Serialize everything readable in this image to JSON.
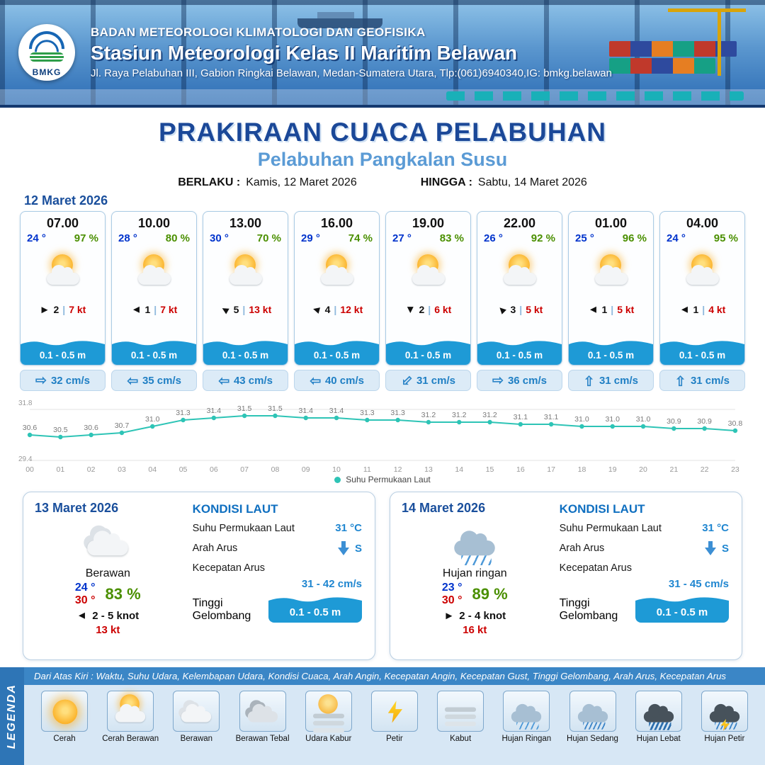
{
  "header": {
    "logo_text": "BMKG",
    "org": "BADAN METEOROLOGI KLIMATOLOGI DAN GEOFISIKA",
    "station": "Stasiun Meteorologi Kelas II Maritim Belawan",
    "address": "Jl. Raya Pelabuhan III, Gabion Ringkai Belawan, Medan-Sumatera Utara, Tlp:(061)6940340,IG: bmkg.belawan"
  },
  "title": {
    "main": "PRAKIRAAN CUACA PELABUHAN",
    "subtitle": "Pelabuhan Pangkalan Susu",
    "valid_from_label": "BERLAKU :",
    "valid_from": "Kamis, 12 Maret 2026",
    "valid_to_label": "HINGGA :",
    "valid_to": "Sabtu, 14 Maret 2026"
  },
  "forecast": {
    "date": "12 Maret 2026",
    "cards": [
      {
        "time": "07.00",
        "temp": "24 °",
        "humidity": "97 %",
        "icon": "cerah-berawan",
        "wind_deg": 0,
        "wind_speed": "2",
        "wind_sep": "|",
        "gust": "7 kt",
        "wave": "0.1 - 0.5 m",
        "current_deg": 0,
        "current": "32 cm/s"
      },
      {
        "time": "10.00",
        "temp": "28 °",
        "humidity": "80 %",
        "icon": "cerah-berawan",
        "wind_deg": 180,
        "wind_speed": "1",
        "wind_sep": "|",
        "gust": "7 kt",
        "wave": "0.1 - 0.5 m",
        "current_deg": 180,
        "current": "35 cm/s"
      },
      {
        "time": "13.00",
        "temp": "30 °",
        "humidity": "70 %",
        "icon": "cerah-berawan",
        "wind_deg": 210,
        "wind_speed": "5",
        "wind_sep": "|",
        "gust": "13 kt",
        "wave": "0.1 - 0.5 m",
        "current_deg": 180,
        "current": "43 cm/s"
      },
      {
        "time": "16.00",
        "temp": "29 °",
        "humidity": "74 %",
        "icon": "cerah-berawan",
        "wind_deg": 195,
        "wind_speed": "4",
        "wind_sep": "|",
        "gust": "12 kt",
        "wave": "0.1 - 0.5 m",
        "current_deg": 180,
        "current": "40 cm/s"
      },
      {
        "time": "19.00",
        "temp": "27 °",
        "humidity": "83 %",
        "icon": "cerah-berawan",
        "wind_deg": 90,
        "wind_speed": "2",
        "wind_sep": "|",
        "gust": "6 kt",
        "wave": "0.1 - 0.5 m",
        "current_deg": 135,
        "current": "31 cm/s"
      },
      {
        "time": "22.00",
        "temp": "26 °",
        "humidity": "92 %",
        "icon": "cerah-berawan",
        "wind_deg": 225,
        "wind_speed": "3",
        "wind_sep": "|",
        "gust": "5 kt",
        "wave": "0.1 - 0.5 m",
        "current_deg": 0,
        "current": "36 cm/s"
      },
      {
        "time": "01.00",
        "temp": "25 °",
        "humidity": "96 %",
        "icon": "cerah-berawan",
        "wind_deg": 180,
        "wind_speed": "1",
        "wind_sep": "|",
        "gust": "5 kt",
        "wave": "0.1 - 0.5 m",
        "current_deg": 270,
        "current": "31 cm/s"
      },
      {
        "time": "04.00",
        "temp": "24 °",
        "humidity": "95 %",
        "icon": "cerah-berawan",
        "wind_deg": 180,
        "wind_speed": "1",
        "wind_sep": "|",
        "gust": "4 kt",
        "wave": "0.1 - 0.5 m",
        "current_deg": 270,
        "current": "31 cm/s"
      }
    ]
  },
  "chart_data": {
    "type": "line",
    "x": [
      "00",
      "01",
      "02",
      "03",
      "04",
      "05",
      "06",
      "07",
      "08",
      "09",
      "10",
      "11",
      "12",
      "13",
      "14",
      "15",
      "16",
      "17",
      "18",
      "19",
      "20",
      "21",
      "22",
      "23"
    ],
    "values": [
      30.6,
      30.5,
      30.6,
      30.7,
      31.0,
      31.3,
      31.4,
      31.5,
      31.5,
      31.4,
      31.4,
      31.3,
      31.3,
      31.2,
      31.2,
      31.2,
      31.1,
      31.1,
      31.0,
      31.0,
      31.0,
      30.9,
      30.9,
      30.8
    ],
    "ylim": [
      29.4,
      31.8
    ],
    "ymax_label": "31.8",
    "ymin_label": "29.4",
    "legend": "Suhu Permukaan Laut",
    "line_color": "#2ec4b6",
    "title": "",
    "xlabel": "",
    "ylabel": ""
  },
  "days": [
    {
      "date": "13 Maret 2026",
      "icon": "berawan",
      "condition": "Berawan",
      "temp_min": "24 °",
      "temp_max": "30 °",
      "humidity": "83 %",
      "wind_deg": 180,
      "wind": "2 - 5 knot",
      "gust": "13 kt",
      "sea": {
        "heading": "KONDISI LAUT",
        "sst_label": "Suhu Permukaan Laut",
        "sst": "31 °C",
        "dir_label": "Arah Arus",
        "dir": "S",
        "speed_label": "Kecepatan Arus",
        "speed": "31 - 42 cm/s",
        "wave_label": "Tinggi Gelombang",
        "wave": "0.1 - 0.5 m"
      }
    },
    {
      "date": "14 Maret 2026",
      "icon": "hujan-ringan",
      "condition": "Hujan ringan",
      "temp_min": "23 °",
      "temp_max": "30 °",
      "humidity": "89 %",
      "wind_deg": 0,
      "wind": "2 - 4 knot",
      "gust": "16 kt",
      "sea": {
        "heading": "KONDISI LAUT",
        "sst_label": "Suhu Permukaan Laut",
        "sst": "31 °C",
        "dir_label": "Arah Arus",
        "dir": "S",
        "speed_label": "Kecepatan Arus",
        "speed": "31 - 45 cm/s",
        "wave_label": "Tinggi Gelombang",
        "wave": "0.1 - 0.5 m"
      }
    }
  ],
  "legend": {
    "title": "LEGENDA",
    "note": "Dari Atas Kiri : Waktu, Suhu Udara, Kelembapan Udara, Kondisi Cuaca, Arah Angin, Kecepatan Angin, Kecepatan Gust, Tinggi Gelombang, Arah Arus, Kecepatan Arus",
    "items": [
      {
        "label": "Cerah",
        "icon": "cerah"
      },
      {
        "label": "Cerah Berawan",
        "icon": "cerah-berawan"
      },
      {
        "label": "Berawan",
        "icon": "berawan"
      },
      {
        "label": "Berawan Tebal",
        "icon": "berawan-tebal"
      },
      {
        "label": "Udara Kabur",
        "icon": "udara-kabur"
      },
      {
        "label": "Petir",
        "icon": "petir"
      },
      {
        "label": "Kabut",
        "icon": "kabut"
      },
      {
        "label": "Hujan Ringan",
        "icon": "hujan-ringan"
      },
      {
        "label": "Hujan Sedang",
        "icon": "hujan-sedang"
      },
      {
        "label": "Hujan Lebat",
        "icon": "hujan-lebat"
      },
      {
        "label": "Hujan Petir",
        "icon": "hujan-petir"
      }
    ]
  }
}
